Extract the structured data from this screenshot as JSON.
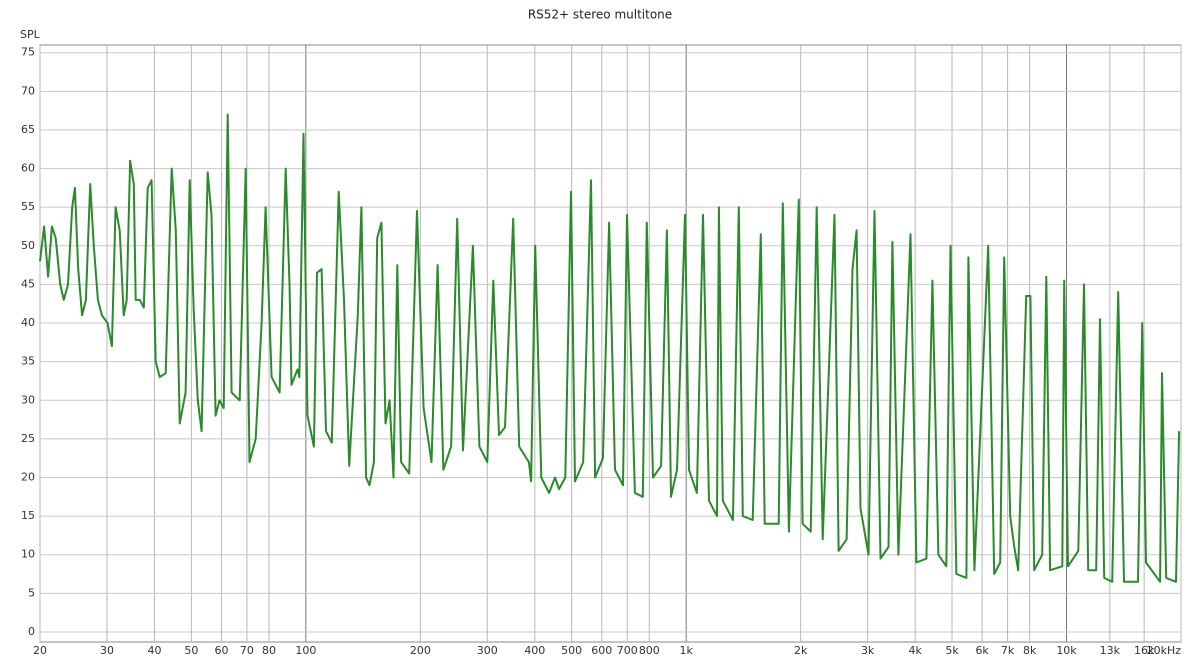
{
  "chart_data": {
    "type": "line",
    "title": "RS52+ stereo multitone",
    "y_label": "SPL",
    "color": "#2b8a2b",
    "grid": true,
    "log_x": true,
    "xlim": [
      20,
      20000
    ],
    "ylim": [
      -1.3,
      76
    ],
    "yticks": [
      0,
      5,
      10,
      15,
      20,
      25,
      30,
      35,
      40,
      45,
      50,
      55,
      60,
      65,
      70,
      75
    ],
    "xticks": [
      20,
      30,
      40,
      50,
      60,
      70,
      80,
      100,
      200,
      300,
      400,
      500,
      600,
      700,
      800,
      {
        "value": 1000,
        "label": "1k"
      },
      {
        "value": 2000,
        "label": "2k"
      },
      {
        "value": 3000,
        "label": "3k"
      },
      {
        "value": 4000,
        "label": "4k"
      },
      {
        "value": 5000,
        "label": "5k"
      },
      {
        "value": 6000,
        "label": "6k"
      },
      {
        "value": 7000,
        "label": "7k"
      },
      {
        "value": 8000,
        "label": "8k"
      },
      {
        "value": 10000,
        "label": "10k"
      },
      {
        "value": 13000,
        "label": "13k"
      },
      {
        "value": 16000,
        "label": "16k"
      },
      {
        "value": 20000,
        "label": "20kHz"
      }
    ],
    "x": [
      20,
      20.5,
      21.0,
      21.5,
      22.0,
      22.6,
      23.1,
      23.7,
      24.3,
      24.7,
      25.2,
      25.8,
      26.4,
      27.1,
      27.7,
      28.4,
      29.1,
      30.1,
      30.9,
      31.6,
      32.4,
      33.2,
      33.8,
      34.5,
      35.3,
      35.7,
      36.6,
      37.5,
      38.4,
      39.3,
      40.3,
      41.3,
      42.8,
      44.4,
      45.5,
      46.6,
      48.3,
      49.5,
      50.7,
      52.0,
      53.2,
      55.2,
      56.5,
      57.9,
      59.3,
      60.8,
      62.3,
      63.8,
      67.0,
      69.5,
      71.1,
      73.8,
      76.5,
      78.4,
      81.3,
      85.3,
      88.5,
      90.6,
      91.7,
      95.1,
      96.2,
      98.6,
      101,
      105,
      107,
      110,
      113,
      117,
      122,
      126,
      130,
      137,
      140,
      144,
      147,
      151,
      154,
      158,
      162,
      166,
      170,
      174,
      178,
      187,
      196,
      204,
      214,
      222,
      230,
      241,
      250,
      259,
      275,
      286,
      300,
      311,
      322,
      334,
      351,
      364,
      386,
      391,
      401,
      416,
      436,
      452,
      463,
      481,
      498,
      510,
      536,
      562,
      576,
      604,
      627,
      650,
      682,
      699,
      733,
      769,
      788,
      818,
      859,
      890,
      912,
      946,
      993,
      1017,
      1067,
      1107,
      1148,
      1205,
      1219,
      1248,
      1327,
      1375,
      1409,
      1496,
      1571,
      1609,
      1751,
      1795,
      1862,
      1977,
      2023,
      2125,
      2204,
      2285,
      2455,
      2517,
      2641,
      2738,
      2806,
      2873,
      3015,
      3127,
      3243,
      3404,
      3486,
      3615,
      3888,
      4029,
      4282,
      4439,
      4603,
      4831,
      4953,
      5133,
      5455,
      5520,
      5726,
      6223,
      6454,
      6693,
      6856,
      7110,
      7291,
      7464,
      7836,
      8035,
      8222,
      8630,
      8850,
      9056,
      9749,
      9862,
      10093,
      10739,
      11117,
      11402,
      11967,
      12246,
      12560,
      13183,
      13677,
      14159,
      15417,
      15813,
      16184,
      17620,
      17824,
      18281,
      19408,
      19770
    ],
    "values": [
      48,
      52.5,
      46,
      52.5,
      51,
      45,
      43,
      45,
      55,
      57.5,
      47,
      41,
      43,
      58,
      50,
      43,
      41,
      40,
      37,
      55,
      52,
      41,
      43,
      61,
      58,
      43,
      43,
      42,
      57.5,
      58.5,
      35,
      33,
      33.5,
      60,
      52,
      27,
      31,
      58.5,
      42,
      30,
      26,
      59.5,
      54,
      28,
      30,
      29,
      67,
      31,
      30,
      60,
      22,
      25,
      40,
      55,
      33,
      31,
      60,
      45,
      32,
      34,
      33,
      64.5,
      28,
      24,
      46.5,
      47,
      26,
      24.5,
      57,
      43,
      21.5,
      41,
      55,
      20,
      19,
      22,
      51,
      53,
      27,
      30,
      20,
      47.5,
      22,
      20.5,
      54.5,
      29,
      22,
      47.5,
      21,
      24,
      53.5,
      23.5,
      50,
      24,
      22,
      45.5,
      25.5,
      26.5,
      53.5,
      24,
      22,
      19.5,
      50,
      20,
      18,
      20,
      18.5,
      20,
      57,
      19.5,
      22,
      58.5,
      20,
      22.5,
      53,
      21,
      19,
      54,
      18,
      17.5,
      53,
      20,
      21.5,
      52,
      17.5,
      21,
      54,
      21,
      18,
      54,
      17,
      15,
      55,
      17,
      14.5,
      55,
      15,
      14.5,
      51.5,
      14,
      14,
      55.5,
      13,
      56,
      14,
      13,
      55,
      12,
      54,
      10.5,
      12,
      47,
      52,
      16,
      10,
      54.5,
      9.5,
      11,
      50.5,
      10,
      51.5,
      9,
      9.5,
      45.5,
      10,
      8.5,
      50,
      7.5,
      7,
      48.5,
      8,
      50,
      7.5,
      9,
      48.5,
      15,
      11,
      8,
      43.5,
      43.5,
      8,
      10,
      46,
      8,
      8.5,
      45.5,
      8.5,
      10.5,
      45,
      8,
      8,
      40.5,
      7,
      6.5,
      44,
      6.5,
      6.5,
      40,
      9,
      6.5,
      33.5,
      7,
      6.5,
      26
    ]
  }
}
